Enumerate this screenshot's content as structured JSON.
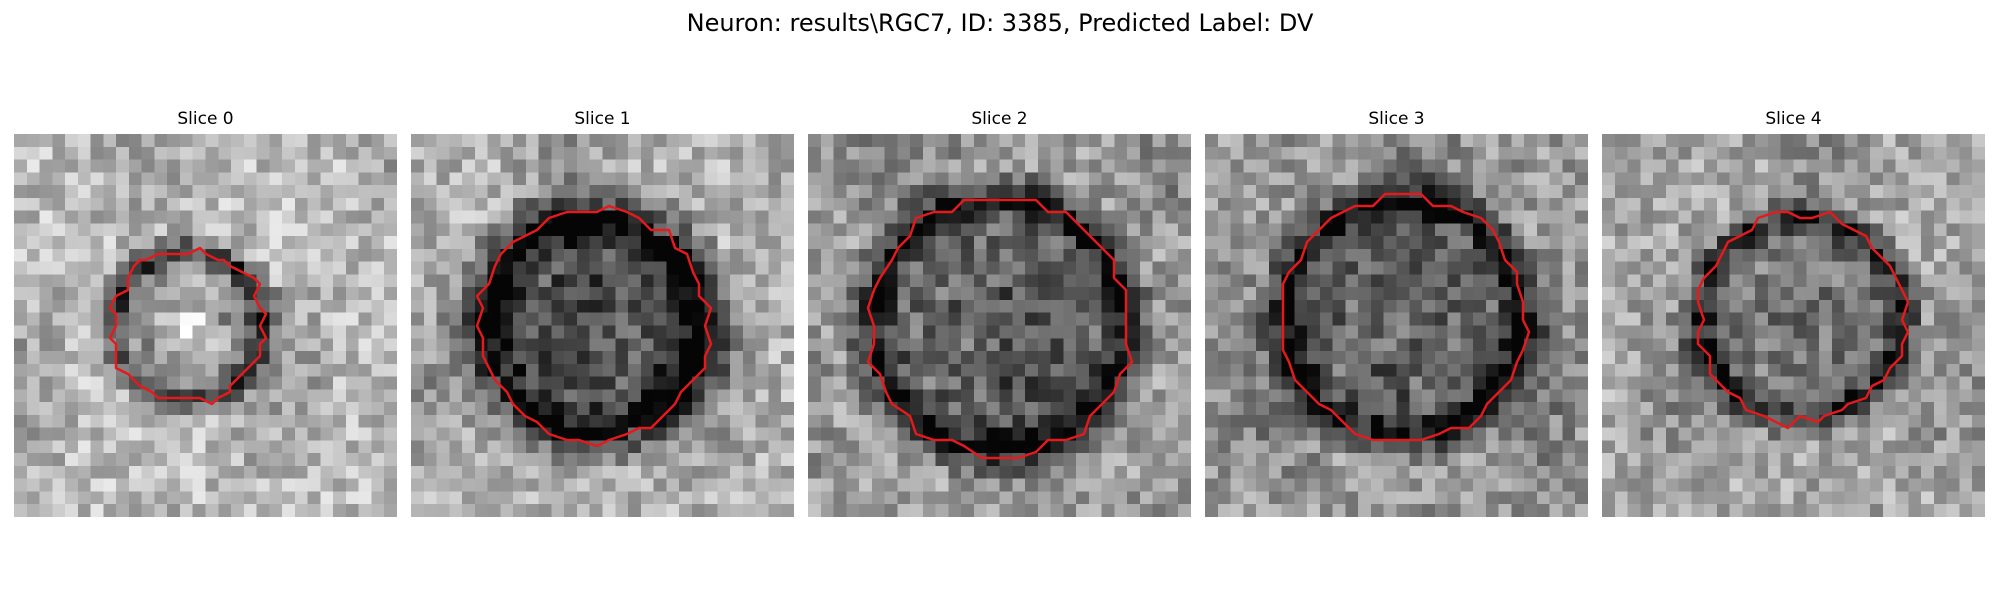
{
  "figure": {
    "title": "Neuron: results\\RGC7, ID: 3385, Predicted Label: DV"
  },
  "contour_color": "#e41a1c",
  "panels": [
    {
      "title": "Slice 0",
      "image": "grayscale microscopy crop with a small ring-shaped soma and a red contour outline"
    },
    {
      "title": "Slice 1",
      "image": "grayscale microscopy crop with a large dark soma and a red contour outline"
    },
    {
      "title": "Slice 2",
      "image": "grayscale microscopy crop with a large round soma and a red contour outline"
    },
    {
      "title": "Slice 3",
      "image": "grayscale microscopy crop with a large dark-rimmed soma and a red contour outline"
    },
    {
      "title": "Slice 4",
      "image": "grayscale microscopy crop with a ring-shaped soma and a red contour outline"
    }
  ]
}
